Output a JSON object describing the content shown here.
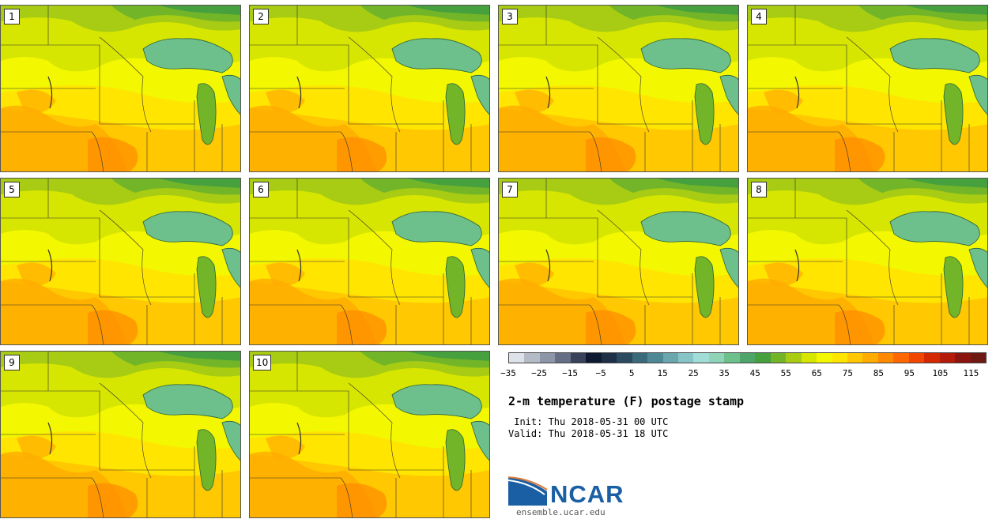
{
  "title": "2-m temperature (F) postage stamp",
  "init_label": " Init: Thu 2018-05-31 00 UTC",
  "valid_label": "Valid: Thu 2018-05-31 18 UTC",
  "logo_text": "NCAR",
  "site": "ensemble.ucar.edu",
  "members": [
    "1",
    "2",
    "3",
    "4",
    "5",
    "6",
    "7",
    "8",
    "9",
    "10"
  ],
  "colorbar": {
    "colors": [
      "#dde1e8",
      "#b4bbc7",
      "#8c96a8",
      "#646f86",
      "#38425b",
      "#0e1a30",
      "#1f2f45",
      "#2c4b60",
      "#3b6a7c",
      "#4f8895",
      "#69a6ad",
      "#86c4c6",
      "#a2dcd6",
      "#8fd3b8",
      "#6dbf8b",
      "#4da56a",
      "#46a03d",
      "#73b528",
      "#a7cc13",
      "#d6e600",
      "#f3f700",
      "#ffe500",
      "#ffc800",
      "#ffab00",
      "#ff8a00",
      "#ff6700",
      "#f24600",
      "#d42800",
      "#b31a0a",
      "#8c1410",
      "#6e1a12"
    ],
    "tick_values": [
      -35,
      -25,
      -15,
      -5,
      5,
      15,
      25,
      35,
      45,
      55,
      65,
      75,
      85,
      95,
      105,
      115
    ],
    "tick_labels": [
      "−35",
      "−25",
      "−15",
      "−5",
      "5",
      "15",
      "25",
      "35",
      "45",
      "55",
      "65",
      "75",
      "85",
      "95",
      "105",
      "115"
    ],
    "min": -35,
    "max": 120
  }
}
